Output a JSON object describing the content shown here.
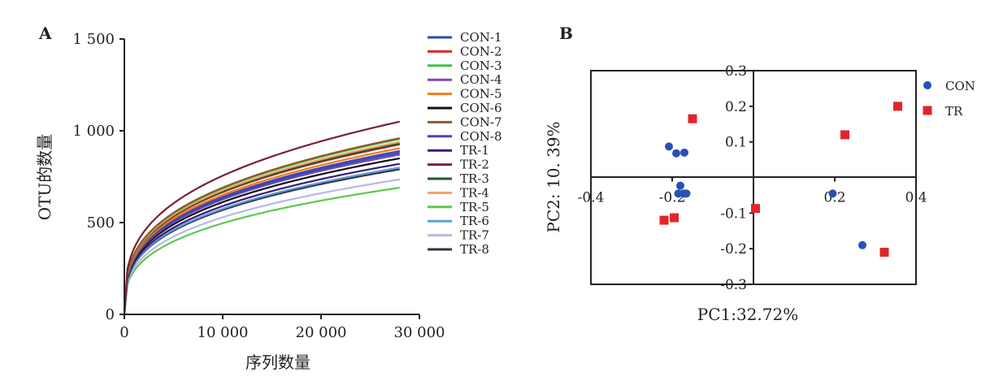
{
  "chart_data": [
    {
      "type": "line",
      "panel_label": "A",
      "title": "",
      "xlabel": "序列数量",
      "ylabel": "OTU的数量",
      "xlim": [
        0,
        30000
      ],
      "ylim": [
        0,
        1500
      ],
      "x_ticks": [
        0,
        10000,
        20000,
        30000
      ],
      "x_tick_labels": [
        "0",
        "10 000",
        "20 000",
        "30 000"
      ],
      "y_ticks": [
        0,
        500,
        1000,
        1500
      ],
      "y_tick_labels": [
        "0",
        "500",
        "1 000",
        "1 500"
      ],
      "x_end": 28000,
      "legend_position": "right",
      "series": [
        {
          "name": "CON-1",
          "color": "#2a4fb5",
          "final": 880
        },
        {
          "name": "CON-2",
          "color": "#e0262b",
          "final": 925
        },
        {
          "name": "CON-3",
          "color": "#3ec23e",
          "final": 955
        },
        {
          "name": "CON-4",
          "color": "#7d47b8",
          "final": 870
        },
        {
          "name": "CON-5",
          "color": "#f07a1a",
          "final": 905
        },
        {
          "name": "CON-6",
          "color": "#111111",
          "final": 850
        },
        {
          "name": "CON-7",
          "color": "#8a5a2b",
          "final": 960
        },
        {
          "name": "CON-8",
          "color": "#4a44a8",
          "final": 890
        },
        {
          "name": "TR-1",
          "color": "#3d1a78",
          "final": 820
        },
        {
          "name": "TR-2",
          "color": "#7a1f3a",
          "final": 1050
        },
        {
          "name": "TR-3",
          "color": "#1f5a2a",
          "final": 930
        },
        {
          "name": "TR-4",
          "color": "#f5a06e",
          "final": 940
        },
        {
          "name": "TR-5",
          "color": "#5cc94a",
          "final": 690
        },
        {
          "name": "TR-6",
          "color": "#5aa0d8",
          "final": 800
        },
        {
          "name": "TR-7",
          "color": "#b8b8e8",
          "final": 735
        },
        {
          "name": "TR-8",
          "color": "#333344",
          "final": 790
        }
      ]
    },
    {
      "type": "scatter",
      "panel_label": "B",
      "title": "",
      "xlabel": "PC1:32.72%",
      "ylabel": "PC2: 10. 39%",
      "xlim": [
        -0.4,
        0.4
      ],
      "ylim": [
        -0.3,
        0.3
      ],
      "x_ticks": [
        -0.4,
        -0.2,
        0.2,
        0.4
      ],
      "x_tick_labels": [
        "-0.4",
        "-0.2",
        "0.2",
        "0.4"
      ],
      "y_ticks": [
        0.3,
        0.2,
        0.1,
        -0.1,
        -0.2,
        -0.3
      ],
      "y_tick_labels": [
        "0.3",
        "0.2",
        "0.1",
        "-0.1",
        "-0.2",
        "-0.3"
      ],
      "legend_position": "top-right",
      "series": [
        {
          "name": "CON",
          "marker": "circle",
          "color": "#2a4fb5",
          "points": [
            [
              -0.208,
              0.087
            ],
            [
              -0.19,
              0.068
            ],
            [
              -0.17,
              0.07
            ],
            [
              -0.18,
              -0.023
            ],
            [
              -0.185,
              -0.045
            ],
            [
              -0.172,
              -0.045
            ],
            [
              -0.165,
              -0.045
            ],
            [
              0.195,
              -0.045
            ],
            [
              0.268,
              -0.19
            ]
          ]
        },
        {
          "name": "TR",
          "marker": "square",
          "color": "#e3242b",
          "points": [
            [
              -0.15,
              0.165
            ],
            [
              0.225,
              0.12
            ],
            [
              0.355,
              0.2
            ],
            [
              -0.22,
              -0.12
            ],
            [
              -0.195,
              -0.113
            ],
            [
              0.005,
              -0.087
            ],
            [
              0.322,
              -0.21
            ]
          ]
        }
      ]
    }
  ]
}
